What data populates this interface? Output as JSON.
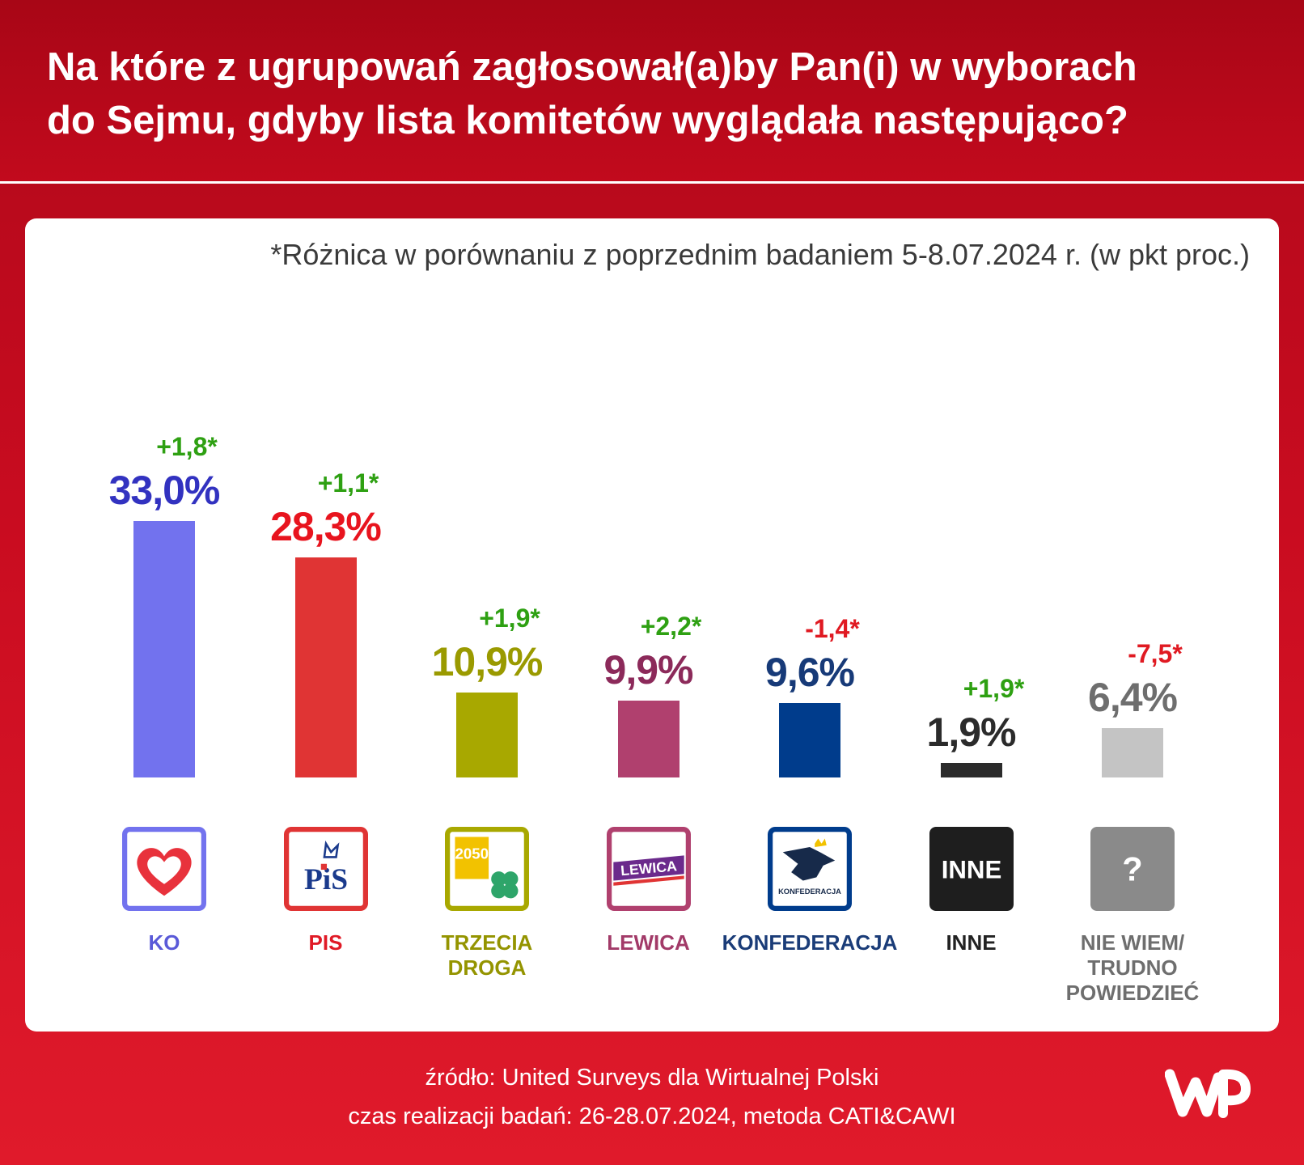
{
  "header": {
    "title_line1": "Na które z ugrupowań zagłosował(a)by Pan(i) w wyborach",
    "title_line2": "do Sejmu, gdyby lista komitetów wyglądała następująco?"
  },
  "note": "*Różnica w porównaniu z poprzednim badaniem 5-8.07.2024 r. (w pkt proc.)",
  "chart_data": {
    "type": "bar",
    "title": "Na które z ugrupowań zagłosował(a)by Pan(i) w wyborach do Sejmu, gdyby lista komitetów wyglądała następująco?",
    "note": "*Różnica w porównaniu z poprzednim badaniem 5-8.07.2024 r. (w pkt proc.)",
    "categories": [
      "KO",
      "PIS",
      "TRZECIA DROGA",
      "LEWICA",
      "KONFEDERACJA",
      "INNE",
      "NIE WIEM/ TRUDNO POWIEDZIEĆ"
    ],
    "values": [
      33.0,
      28.3,
      10.9,
      9.9,
      9.6,
      1.9,
      6.4
    ],
    "grid": false,
    "legend": "none",
    "bars": [
      {
        "name_lines": [
          "KO"
        ],
        "value": 33.0,
        "value_label": "33,0%",
        "diff": 1.8,
        "diff_label": "+1,8*",
        "bar_color": "#7272ee",
        "label_color": "#3232c0",
        "name_color": "#5a5ad8",
        "logo": "ko-heart-icon"
      },
      {
        "name_lines": [
          "PIS"
        ],
        "value": 28.3,
        "value_label": "28,3%",
        "diff": 1.1,
        "diff_label": "+1,1*",
        "bar_color": "#e03434",
        "label_color": "#e8141e",
        "name_color": "#e01a26",
        "logo": "pis-crown-icon",
        "logo_text": "PiS"
      },
      {
        "name_lines": [
          "TRZECIA",
          "DROGA"
        ],
        "value": 10.9,
        "value_label": "10,9%",
        "diff": 1.9,
        "diff_label": "+1,9*",
        "bar_color": "#a8a800",
        "label_color": "#9a9a00",
        "name_color": "#949400",
        "logo": "trzecia-droga-clover-icon",
        "logo_text": "2050"
      },
      {
        "name_lines": [
          "LEWICA"
        ],
        "value": 9.9,
        "value_label": "9,9%",
        "diff": 2.2,
        "diff_label": "+2,2*",
        "bar_color": "#b0406e",
        "label_color": "#8c2a5a",
        "name_color": "#a23a68",
        "logo": "lewica-logo-icon",
        "logo_text": "LEWICA"
      },
      {
        "name_lines": [
          "KONFEDERACJA"
        ],
        "value": 9.6,
        "value_label": "9,6%",
        "diff": -1.4,
        "diff_label": "-1,4*",
        "bar_color": "#003c8c",
        "label_color": "#173a78",
        "name_color": "#1a3c78",
        "logo": "konfederacja-eagle-icon",
        "logo_text": "KONFEDERACJA"
      },
      {
        "name_lines": [
          "INNE"
        ],
        "value": 1.9,
        "value_label": "1,9%",
        "diff": 1.9,
        "diff_label": "+1,9*",
        "bar_color": "#2b2b2b",
        "label_color": "#2b2b2b",
        "name_color": "#222222",
        "logo": "inne-box-icon",
        "logo_text": "INNE"
      },
      {
        "name_lines": [
          "NIE WIEM/",
          "TRUDNO",
          "POWIEDZIEĆ"
        ],
        "value": 6.4,
        "value_label": "6,4%",
        "diff": -7.5,
        "diff_label": "-7,5*",
        "bar_color": "#c4c4c4",
        "label_color": "#6e6e6e",
        "name_color": "#6e6e6e",
        "logo": "question-mark-icon",
        "logo_text": "?"
      }
    ],
    "colors": {
      "positive_diff": "#2ea012",
      "negative_diff": "#e01a22"
    }
  },
  "footer": {
    "source": "źródło: United Surveys dla Wirtualnej Polski",
    "timing": "czas realizacji badań: 26-28.07.2024, metoda CATI&CAWI"
  },
  "brand": {
    "logo": "wp-logo-icon"
  }
}
